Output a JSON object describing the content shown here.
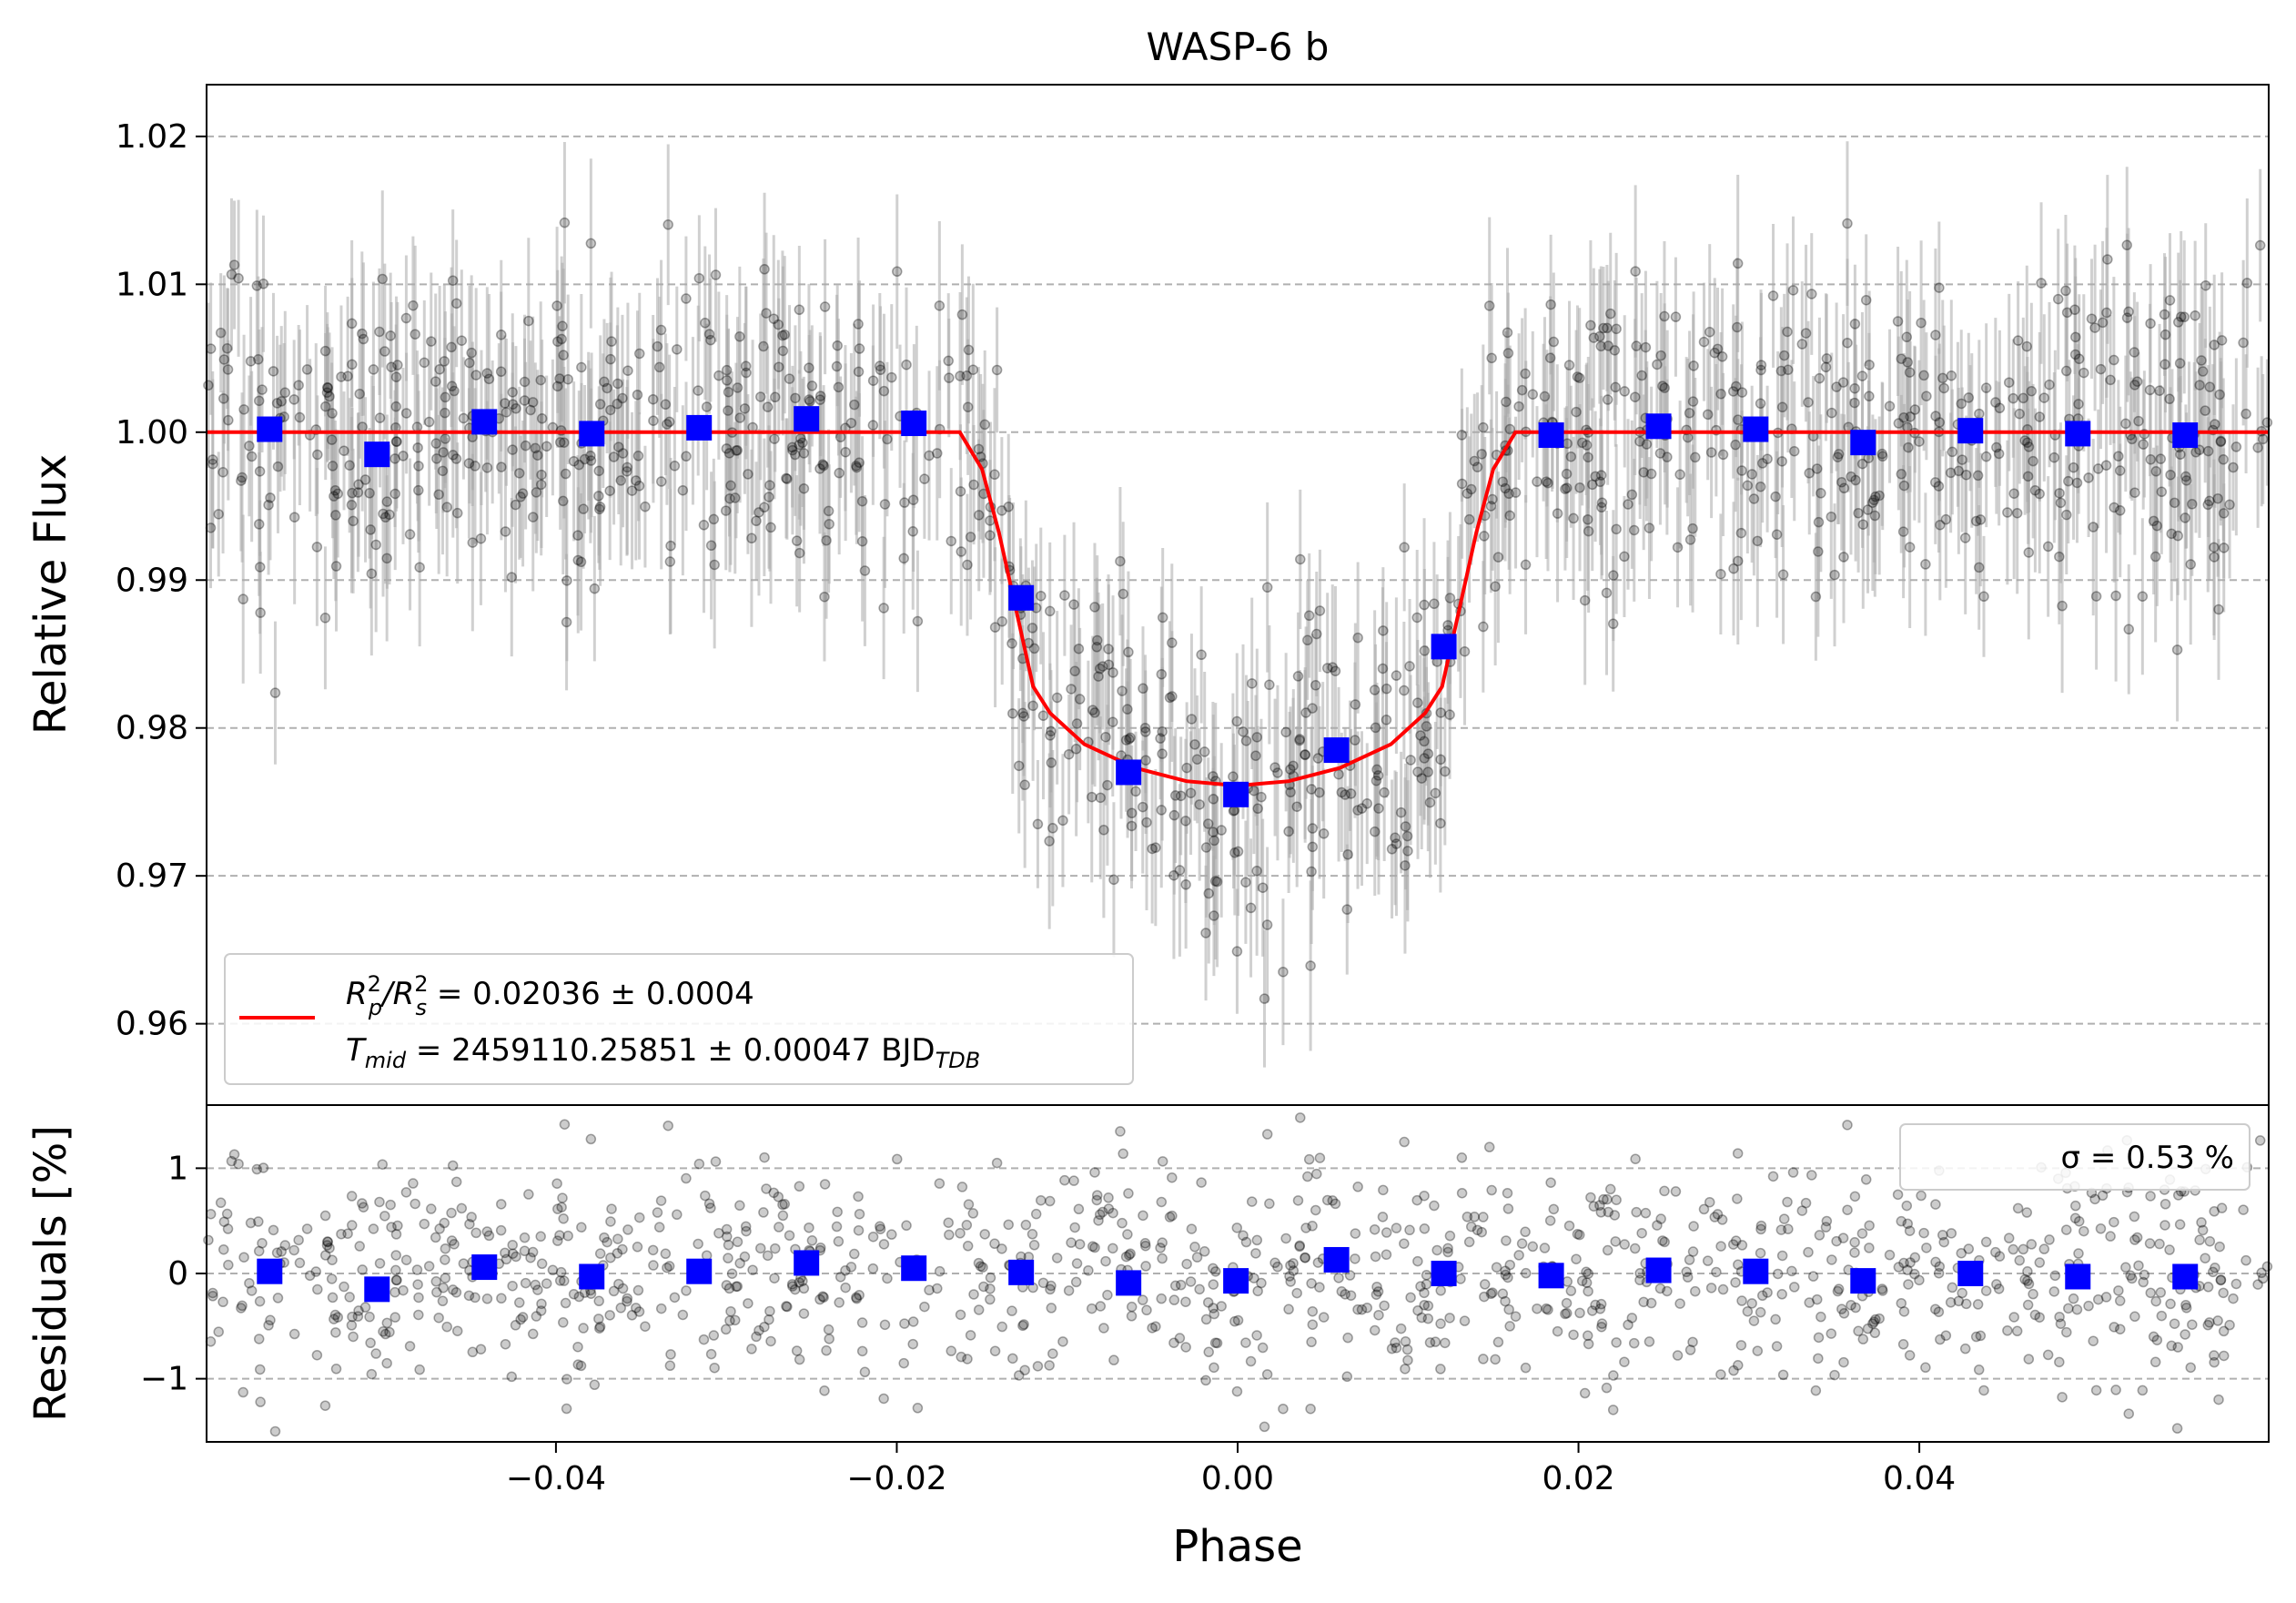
{
  "chart_data": [
    {
      "type": "scatter",
      "title": "WASP-6 b",
      "xlabel": "Phase",
      "ylabel": "Relative Flux",
      "xlim": [
        -0.0605,
        0.0605
      ],
      "ylim": [
        0.9545,
        1.0235
      ],
      "yticks": [
        {
          "value": 0.96,
          "label": "0.96"
        },
        {
          "value": 0.97,
          "label": "0.97"
        },
        {
          "value": 0.98,
          "label": "0.98"
        },
        {
          "value": 0.99,
          "label": "0.99"
        },
        {
          "value": 1.0,
          "label": "1.00"
        },
        {
          "value": 1.01,
          "label": "1.01"
        },
        {
          "value": 1.02,
          "label": "1.02"
        }
      ],
      "grid": "y-dashed",
      "series": [
        {
          "name": "binned-flux",
          "color": "#0000ff",
          "marker": "square",
          "x": [
            -0.0568,
            -0.0505,
            -0.0442,
            -0.0379,
            -0.0316,
            -0.0253,
            -0.019,
            -0.0127,
            -0.0064,
            -0.0001,
            0.0058,
            0.0121,
            0.0184,
            0.0247,
            0.0304,
            0.0367,
            0.043,
            0.0493,
            0.0556
          ],
          "y": [
            1.0002,
            0.9985,
            1.0007,
            0.9999,
            1.0003,
            1.0009,
            1.0006,
            0.9888,
            0.977,
            0.9755,
            0.9785,
            0.9855,
            0.9998,
            1.0004,
            1.0002,
            0.9993,
            1.0001,
            0.9999,
            0.9998
          ]
        },
        {
          "name": "transit-model",
          "color": "#ff0000",
          "type": "line",
          "x": [
            -0.0605,
            -0.0163,
            -0.015,
            -0.014,
            -0.013,
            -0.012,
            -0.011,
            -0.009,
            -0.006,
            -0.003,
            0.0,
            0.003,
            0.006,
            0.009,
            0.011,
            0.012,
            0.013,
            0.014,
            0.015,
            0.0163,
            0.0605
          ],
          "y": [
            1.0,
            1.0,
            0.9975,
            0.9932,
            0.988,
            0.9828,
            0.981,
            0.9789,
            0.9773,
            0.9764,
            0.9761,
            0.9764,
            0.9773,
            0.9789,
            0.981,
            0.9828,
            0.988,
            0.9932,
            0.9975,
            1.0,
            1.0
          ]
        }
      ],
      "legend": {
        "position": "lower-left",
        "line1": "R²p/R²s = 0.02036 ± 0.0004",
        "line2": "Tmid = 2459110.25851 ± 0.00047 BJDTDB"
      }
    },
    {
      "type": "scatter",
      "xlabel": "Phase",
      "ylabel": "Residuals [%]",
      "xlim": [
        -0.0605,
        0.0605
      ],
      "ylim": [
        -1.6,
        1.6
      ],
      "xticks": [
        {
          "value": -0.04,
          "label": "−0.04"
        },
        {
          "value": -0.02,
          "label": "−0.02"
        },
        {
          "value": 0.0,
          "label": "0.00"
        },
        {
          "value": 0.02,
          "label": "0.02"
        },
        {
          "value": 0.04,
          "label": "0.04"
        }
      ],
      "yticks": [
        {
          "value": -1,
          "label": "−1"
        },
        {
          "value": 0,
          "label": "0"
        },
        {
          "value": 1,
          "label": "1"
        }
      ],
      "grid": "y-dashed",
      "series": [
        {
          "name": "binned-residuals",
          "color": "#0000ff",
          "marker": "square",
          "x": [
            -0.0568,
            -0.0505,
            -0.0442,
            -0.0379,
            -0.0316,
            -0.0253,
            -0.019,
            -0.0127,
            -0.0064,
            -0.0001,
            0.0058,
            0.0121,
            0.0184,
            0.0247,
            0.0304,
            0.0367,
            0.043,
            0.0493,
            0.0556
          ],
          "y": [
            0.02,
            -0.15,
            0.06,
            -0.03,
            0.02,
            0.1,
            0.05,
            0.01,
            -0.09,
            -0.07,
            0.13,
            0.0,
            -0.02,
            0.03,
            0.02,
            -0.07,
            0.0,
            -0.03,
            -0.03
          ]
        }
      ],
      "legend": {
        "position": "top-right",
        "text": "σ = 0.53 %"
      }
    }
  ],
  "raw_points": {
    "count": 1100,
    "color": "#000000",
    "flux_scatter_sigma": 0.0053,
    "residual_sigma_percent": 0.53,
    "errorbar_color": "#a9a9a9"
  }
}
